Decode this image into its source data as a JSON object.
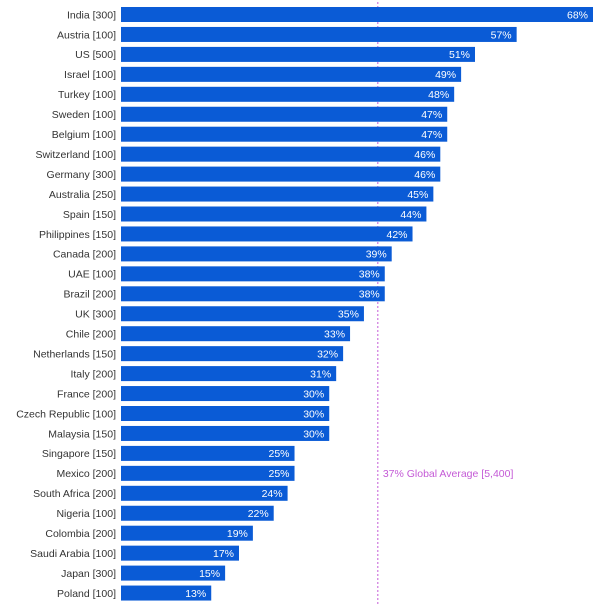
{
  "chart_data": {
    "type": "bar",
    "orientation": "horizontal",
    "categories": [
      "India [300]",
      "Austria [100]",
      "US [500]",
      "Israel [100]",
      "Turkey [100]",
      "Sweden [100]",
      "Belgium [100]",
      "Switzerland [100]",
      "Germany [300]",
      "Australia [250]",
      "Spain [150]",
      "Philippines [150]",
      "Canada [200]",
      "UAE [100]",
      "Brazil [200]",
      "UK [300]",
      "Chile [200]",
      "Netherlands [150]",
      "Italy [200]",
      "France [200]",
      "Czech Republic [100]",
      "Malaysia [150]",
      "Singapore [150]",
      "Mexico [200]",
      "South Africa [200]",
      "Nigeria [100]",
      "Colombia [200]",
      "Saudi Arabia [100]",
      "Japan [300]",
      "Poland [100]"
    ],
    "values": [
      68,
      57,
      51,
      49,
      48,
      47,
      47,
      46,
      46,
      45,
      44,
      42,
      39,
      38,
      38,
      35,
      33,
      32,
      31,
      30,
      30,
      30,
      25,
      25,
      24,
      22,
      19,
      17,
      15,
      13
    ],
    "value_labels": [
      "68%",
      "57%",
      "51%",
      "49%",
      "48%",
      "47%",
      "47%",
      "46%",
      "46%",
      "45%",
      "44%",
      "42%",
      "39%",
      "38%",
      "38%",
      "35%",
      "33%",
      "32%",
      "31%",
      "30%",
      "30%",
      "30%",
      "25%",
      "25%",
      "24%",
      "22%",
      "19%",
      "17%",
      "15%",
      "13%"
    ],
    "reference_line": {
      "value": 37,
      "label": "37% Global Average [5,400]"
    },
    "xlim": [
      0,
      68
    ],
    "bar_color": "#0a5bd6",
    "reference_color": "#c45ad6",
    "grid": false
  }
}
